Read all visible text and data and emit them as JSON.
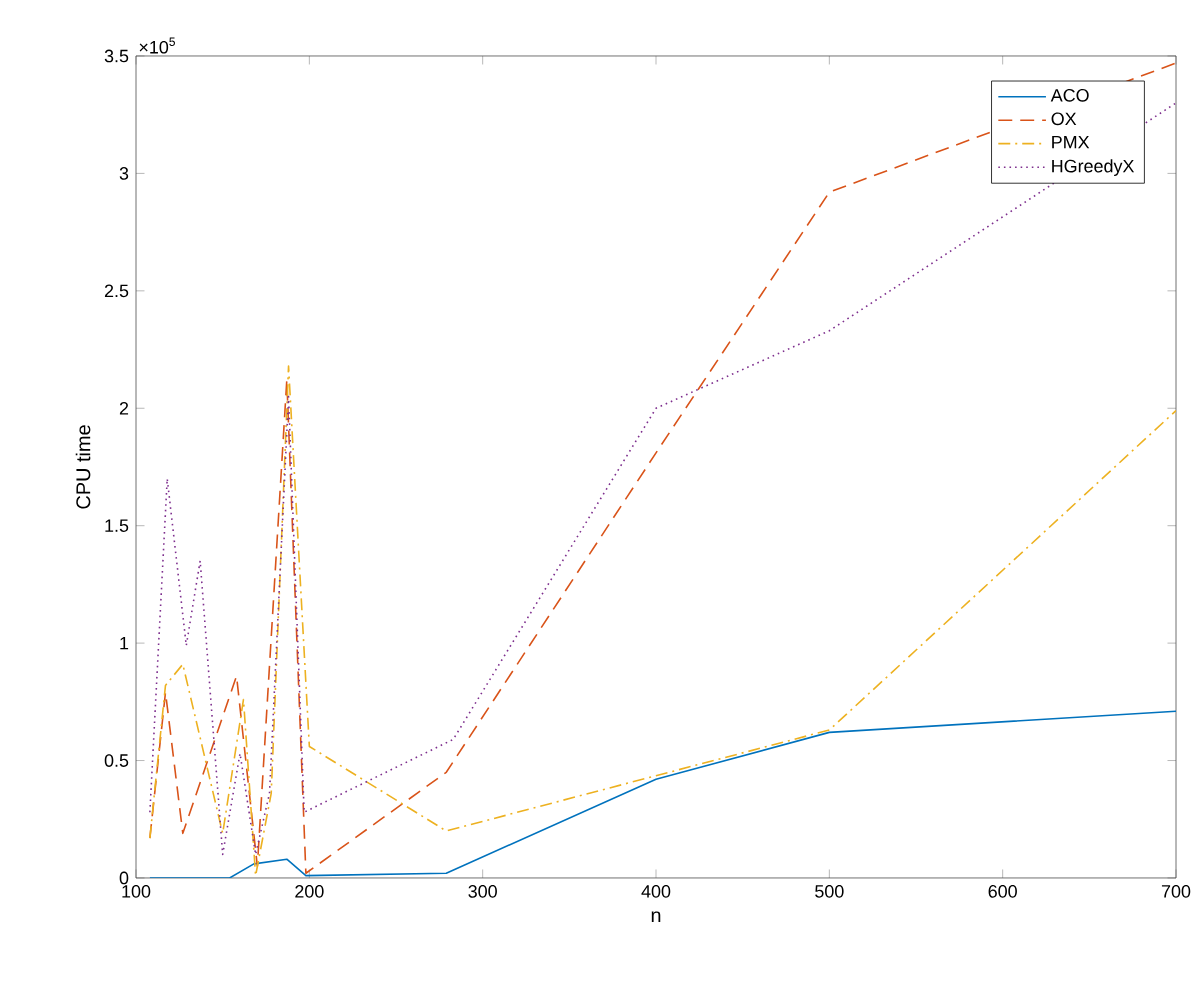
{
  "chart_data": {
    "type": "line",
    "xlabel": "n",
    "ylabel": "CPU time",
    "xlim": [
      100,
      700
    ],
    "xticks": [
      100,
      200,
      300,
      400,
      500,
      600,
      700
    ],
    "ylim": [
      0,
      3.5
    ],
    "yticks": [
      0,
      0.5,
      1,
      1.5,
      2,
      2.5,
      3,
      3.5
    ],
    "annotations": [
      "×10$^{5}$"
    ],
    "legend": "top right",
    "grid": false,
    "series": [
      {
        "name": "ACO",
        "color": "#0072bd",
        "line_style": "solid",
        "x": [
          108,
          154,
          168,
          187,
          198,
          279,
          400,
          500,
          700
        ],
        "values": [
          0,
          0,
          0.06,
          0.08,
          0.01,
          0.02,
          0.42,
          0.62,
          0.71
        ]
      },
      {
        "name": "OX",
        "color": "#d95319",
        "line_style": "dashed",
        "x": [
          108,
          117,
          127,
          158,
          170,
          187,
          198,
          279,
          400,
          500,
          700
        ],
        "values": [
          0.17,
          0.79,
          0.19,
          0.86,
          0.05,
          2.12,
          0.02,
          0.45,
          1.81,
          2.92,
          3.47
        ]
      },
      {
        "name": "PMX",
        "color": "#edb120",
        "line_style": "dashdot",
        "x": [
          108,
          117,
          127,
          150,
          162,
          169,
          178,
          188,
          200,
          279,
          500,
          700
        ],
        "values": [
          0.17,
          0.82,
          0.91,
          0.19,
          0.76,
          0.01,
          0.36,
          2.18,
          0.56,
          0.2,
          0.63,
          1.99
        ]
      },
      {
        "name": "HGreedyX",
        "color": "#7e2f8e",
        "line_style": "dotted",
        "x": [
          108,
          118,
          129,
          137,
          150,
          160,
          169,
          177,
          188,
          197,
          283,
          400,
          500,
          700
        ],
        "values": [
          0.28,
          1.7,
          0.99,
          1.35,
          0.1,
          0.53,
          0.1,
          0.36,
          2.05,
          0.28,
          0.59,
          2.0,
          2.33,
          3.3
        ]
      }
    ]
  }
}
